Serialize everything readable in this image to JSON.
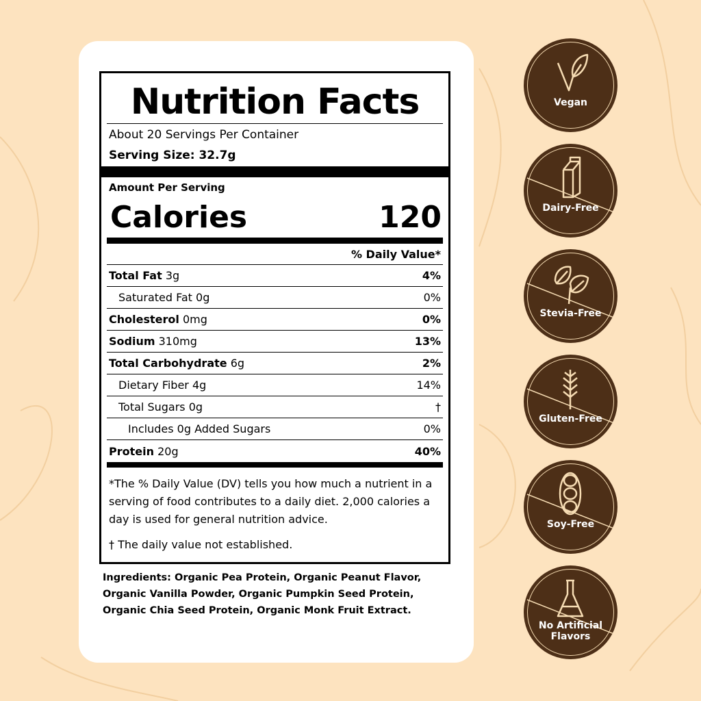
{
  "label": {
    "title": "Nutrition Facts",
    "servings": "About 20 Servings Per Container",
    "serving_size": "Serving Size: 32.7g",
    "amount_per_serving": "Amount Per Serving",
    "calories_label": "Calories",
    "calories_value": "120",
    "dv_header": "%  Daily Value*",
    "rows": [
      {
        "name": "Total Fat",
        "amount": "3g",
        "dv": "4%",
        "bold": true,
        "indent": 0
      },
      {
        "name": "Saturated Fat",
        "amount": "0g",
        "dv": "0%",
        "bold": false,
        "indent": 1
      },
      {
        "name": "Cholesterol",
        "amount": "0mg",
        "dv": "0%",
        "bold": true,
        "indent": 0
      },
      {
        "name": "Sodium",
        "amount": "310mg",
        "dv": "13%",
        "bold": true,
        "indent": 0
      },
      {
        "name": "Total Carbohydrate",
        "amount": "6g",
        "dv": "2%",
        "bold": true,
        "indent": 0
      },
      {
        "name": "Dietary Fiber",
        "amount": "4g",
        "dv": "14%",
        "bold": false,
        "indent": 1
      },
      {
        "name": "Total Sugars",
        "amount": "0g",
        "dv": "†",
        "bold": false,
        "indent": 1
      },
      {
        "name": "Includes 0g Added Sugars",
        "amount": "",
        "dv": "0%",
        "bold": false,
        "indent": 2
      },
      {
        "name": "Protein",
        "amount": "20g",
        "dv": "40%",
        "bold": true,
        "indent": 0
      }
    ],
    "footnote": "*The % Daily Value (DV) tells you how much a nutrient in a serving of food contributes to a daily diet. 2,000 calories a day is used for general nutrition advice.",
    "dagger_note": "† The daily value not established."
  },
  "ingredients": "Ingredients: Organic Pea Protein, Organic Peanut Flavor, Organic Vanilla Powder, Organic Pumpkin Seed Protein, Organic Chia Seed Protein, Organic Monk Fruit Extract.",
  "badges": [
    {
      "label": "Vegan",
      "icon": "leaf-v-icon"
    },
    {
      "label": "Dairy-Free",
      "icon": "milk-carton-icon"
    },
    {
      "label": "Stevia-Free",
      "icon": "stevia-leaves-icon"
    },
    {
      "label": "Gluten-Free",
      "icon": "wheat-icon"
    },
    {
      "label": "Soy-Free",
      "icon": "soybean-icon"
    },
    {
      "label": "No Artificial Flavors",
      "icon": "flask-icon"
    }
  ],
  "colors": {
    "background": "#fde3bf",
    "badge": "#4d2f17",
    "badge_line": "#f6dcb3"
  }
}
